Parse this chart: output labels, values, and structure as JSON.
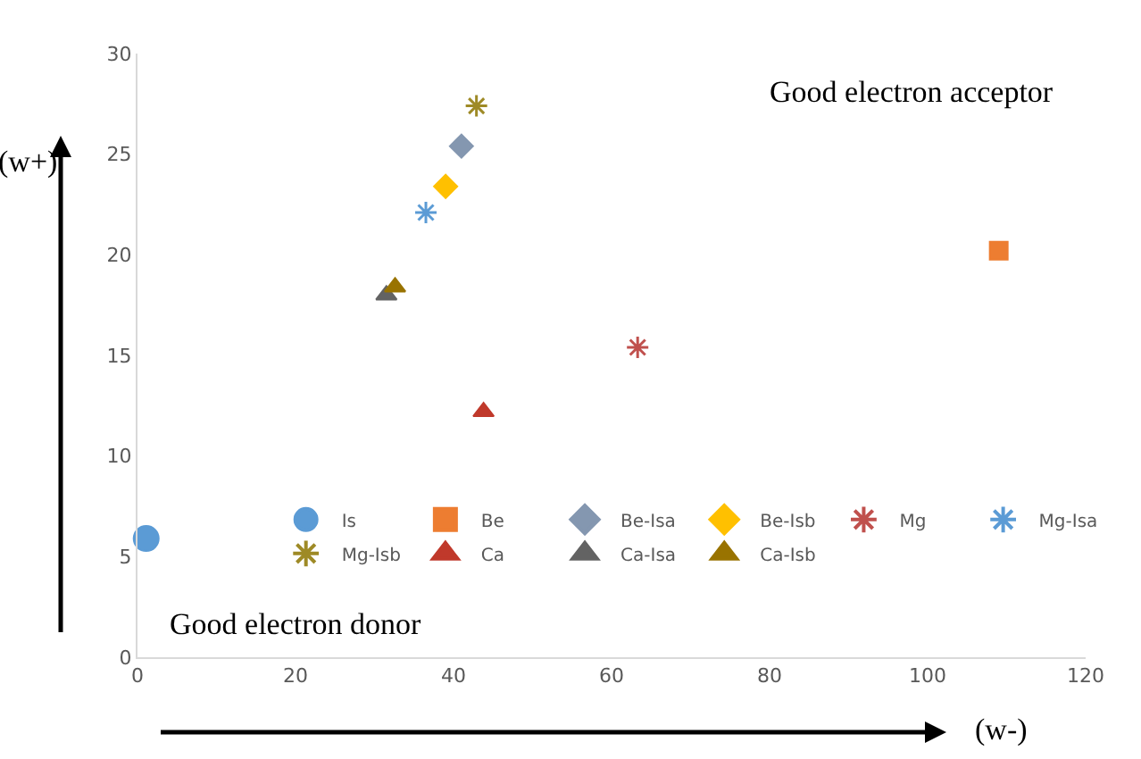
{
  "chart_data": {
    "type": "scatter",
    "xlabel": "(w-)",
    "ylabel": "(w+)",
    "xlim": [
      0,
      120
    ],
    "xticks": [
      0,
      20,
      40,
      60,
      80,
      100,
      120
    ],
    "ylim": [
      0,
      30
    ],
    "yticks": [
      0,
      5,
      10,
      15,
      20,
      25,
      30
    ],
    "grid": false,
    "legend": "bottom",
    "annotations": [
      "Good electron acceptor",
      "Good electron donor"
    ],
    "series": [
      {
        "name": "Is",
        "color": "#5b9bd5",
        "marker": "circle",
        "x": [
          1.1
        ],
        "values": [
          5.9
        ]
      },
      {
        "name": "Be",
        "color": "#ed7d31",
        "marker": "square",
        "x": [
          109
        ],
        "values": [
          20.2
        ]
      },
      {
        "name": "Be-Isa",
        "color": "#8497b0",
        "marker": "diamond",
        "x": [
          41
        ],
        "values": [
          25.4
        ]
      },
      {
        "name": "Be-Isb",
        "color": "#ffc000",
        "marker": "diamond",
        "x": [
          39
        ],
        "values": [
          23.4
        ]
      },
      {
        "name": "Mg",
        "color": "#c0504d",
        "marker": "cross",
        "x": [
          63.3
        ],
        "values": [
          15.4
        ]
      },
      {
        "name": "Mg-Isa",
        "color": "#5b9bd5",
        "marker": "cross",
        "x": [
          36.5
        ],
        "values": [
          22.1
        ]
      },
      {
        "name": "Mg-Isb",
        "color": "#9e8a26",
        "marker": "cross",
        "x": [
          42.9
        ],
        "values": [
          27.4
        ]
      },
      {
        "name": "Ca",
        "color": "#c0392b",
        "marker": "triangle",
        "x": [
          43.8
        ],
        "values": [
          12.2
        ]
      },
      {
        "name": "Ca-Isa",
        "color": "#636363",
        "marker": "triangle",
        "x": [
          31.5
        ],
        "values": [
          18.0
        ]
      },
      {
        "name": "Ca-Isb",
        "color": "#997300",
        "marker": "triangle",
        "x": [
          32.6
        ],
        "values": [
          18.4
        ]
      }
    ]
  }
}
